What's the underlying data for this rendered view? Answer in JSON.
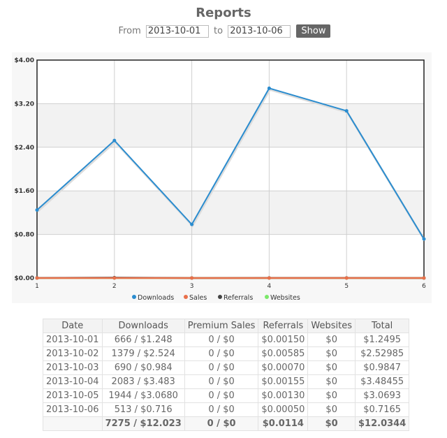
{
  "header": {
    "title": "Reports"
  },
  "range": {
    "from_label": "From",
    "from_value": "2013-10-01",
    "to_label": "to",
    "to_value": "2013-10-06",
    "show_label": "Show"
  },
  "chart_data": {
    "type": "line",
    "x": [
      1,
      2,
      3,
      4,
      5,
      6
    ],
    "ylim": [
      0,
      4
    ],
    "yticks": [
      "$0.00",
      "$0.80",
      "$1.60",
      "$2.40",
      "$3.20",
      "$4.00"
    ],
    "ytick_values": [
      0,
      0.8,
      1.6,
      2.4,
      3.2,
      4.0
    ],
    "xticks": [
      "1",
      "2",
      "3",
      "4",
      "5",
      "6"
    ],
    "grid": true,
    "legend_position": "bottom",
    "series": [
      {
        "name": "Downloads",
        "color": "#2a8ccf",
        "values": [
          1.248,
          2.524,
          0.984,
          3.483,
          3.068,
          0.716
        ]
      },
      {
        "name": "Sales",
        "color": "#e8704a",
        "values": [
          0,
          0,
          0,
          0,
          0,
          0
        ]
      },
      {
        "name": "Referrals",
        "color": "#444444",
        "values": [
          0.0015,
          0.00585,
          0.0007,
          0.00155,
          0.0013,
          0.0005
        ]
      },
      {
        "name": "Websites",
        "color": "#7be86a",
        "values": [
          0,
          0,
          0,
          0,
          0,
          0
        ]
      }
    ]
  },
  "table": {
    "headers": [
      "Date",
      "Downloads",
      "Premium Sales",
      "Referrals",
      "Websites",
      "Total"
    ],
    "rows": [
      [
        "2013-10-01",
        "666 / $1.248",
        "0 / $0",
        "$0.00150",
        "$0",
        "$1.2495"
      ],
      [
        "2013-10-02",
        "1379 / $2.524",
        "0 / $0",
        "$0.00585",
        "$0",
        "$2.52985"
      ],
      [
        "2013-10-03",
        "690 / $0.984",
        "0 / $0",
        "$0.00070",
        "$0",
        "$0.9847"
      ],
      [
        "2013-10-04",
        "2083 / $3.483",
        "0 / $0",
        "$0.00155",
        "$0",
        "$3.48455"
      ],
      [
        "2013-10-05",
        "1944 / $3.0680",
        "0 / $0",
        "$0.00130",
        "$0",
        "$3.0693"
      ],
      [
        "2013-10-06",
        "513 / $0.716",
        "0 / $0",
        "$0.00050",
        "$0",
        "$0.7165"
      ]
    ],
    "total": [
      "",
      "7275 / $12.023",
      "0 / $0",
      "$0.0114",
      "$0",
      "$12.0344"
    ]
  }
}
